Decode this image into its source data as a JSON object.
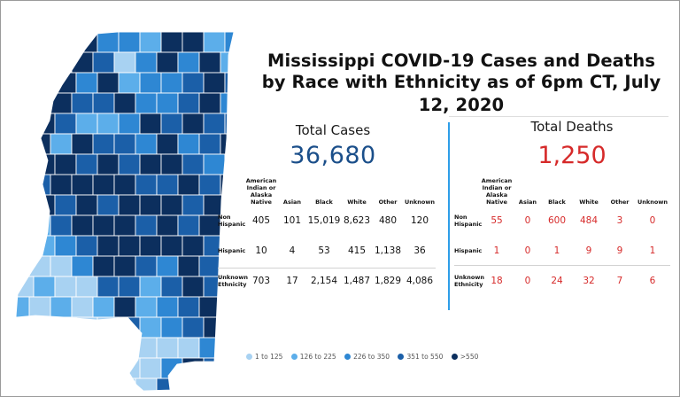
{
  "title_line1": "Mississippi COVID-19 Cases and Deaths",
  "title_line2": "by Race with Ethnicity as of 6pm CT, July 12, 2020",
  "cases": {
    "heading": "Total Cases",
    "total": "36,680",
    "columns": [
      "American Indian or Alaska Native",
      "Asian",
      "Black",
      "White",
      "Other",
      "Unknown"
    ],
    "rows": [
      {
        "label": "Non Hispanic",
        "values": [
          "405",
          "101",
          "15,019",
          "8,623",
          "480",
          "120"
        ]
      },
      {
        "label": "Hispanic",
        "values": [
          "10",
          "4",
          "53",
          "415",
          "1,138",
          "36"
        ]
      },
      {
        "label": "Unknown Ethnicity",
        "values": [
          "703",
          "17",
          "2,154",
          "1,487",
          "1,829",
          "4,086"
        ]
      }
    ]
  },
  "deaths": {
    "heading": "Total Deaths",
    "total": "1,250",
    "columns": [
      "American Indian or Alaska Native",
      "Asian",
      "Black",
      "White",
      "Other",
      "Unknown"
    ],
    "rows": [
      {
        "label": "Non Hispanic",
        "values": [
          "55",
          "0",
          "600",
          "484",
          "3",
          "0"
        ]
      },
      {
        "label": "Hispanic",
        "values": [
          "1",
          "0",
          "1",
          "9",
          "9",
          "1"
        ]
      },
      {
        "label": "Unknown Ethnicity",
        "values": [
          "18",
          "0",
          "24",
          "32",
          "7",
          "6"
        ]
      }
    ]
  },
  "legend": [
    {
      "label": "1 to 125",
      "color": "#a8d2f2"
    },
    {
      "label": "126 to 225",
      "color": "#5caeea"
    },
    {
      "label": "226 to 350",
      "color": "#2e87d3"
    },
    {
      "label": "351 to 550",
      "color": "#1b5fa8"
    },
    {
      "label": ">550",
      "color": "#0c2f5e"
    }
  ]
}
